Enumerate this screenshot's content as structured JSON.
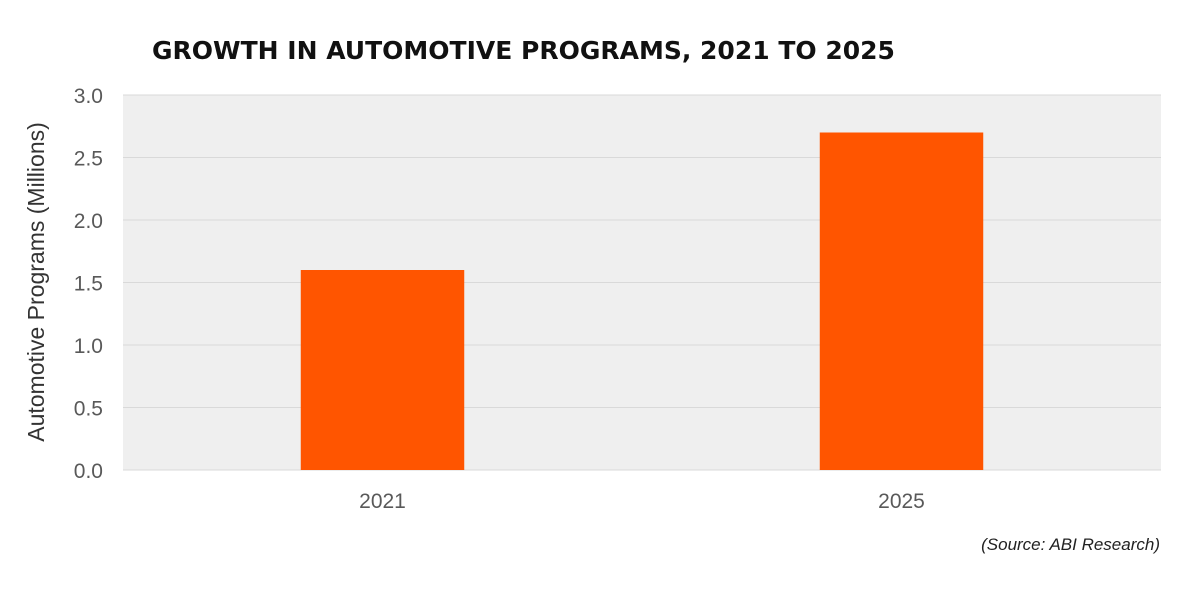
{
  "chart_data": {
    "type": "bar",
    "title": "GROWTH IN AUTOMOTIVE PROGRAMS, 2021 TO 2025",
    "xlabel": "",
    "ylabel": "Automotive Programs (Millions)",
    "categories": [
      "2021",
      "2025"
    ],
    "values": [
      1.6,
      2.7
    ],
    "ylim": [
      0,
      3.0
    ],
    "yticks": [
      "0.0",
      "0.5",
      "1.0",
      "1.5",
      "2.0",
      "2.5",
      "3.0"
    ],
    "grid": true,
    "legend": "none",
    "source": "(Source: ABI Research)",
    "colors": {
      "bar": "#FF5500",
      "plot_background": "#EFEFEF",
      "gridline": "#D9D9D9"
    }
  }
}
